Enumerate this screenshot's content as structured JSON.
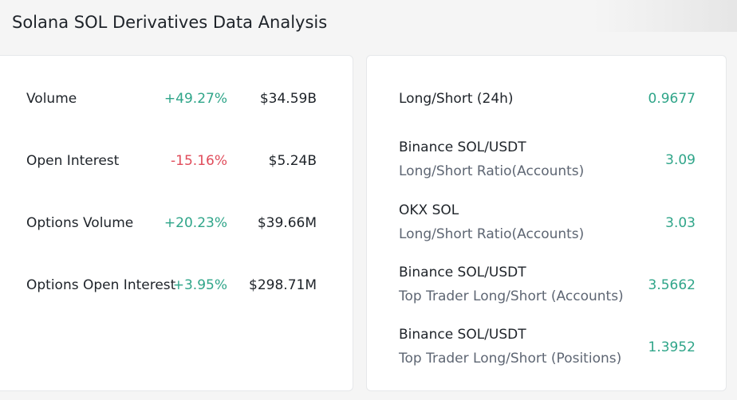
{
  "title": "Solana SOL Derivatives Data Analysis",
  "left_metrics": [
    {
      "label": "Volume",
      "change": "+49.27%",
      "direction": "up",
      "value": "$34.59B"
    },
    {
      "label": "Open Interest",
      "change": "-15.16%",
      "direction": "down",
      "value": "$5.24B"
    },
    {
      "label": "Options Volume",
      "change": "+20.23%",
      "direction": "up",
      "value": "$39.66M"
    },
    {
      "label": "Options Open Interest",
      "change": "+3.95%",
      "direction": "up",
      "value": "$298.71M"
    }
  ],
  "right_metrics": [
    {
      "line1": "Long/Short (24h)",
      "line2": "",
      "value": "0.9677"
    },
    {
      "line1": "Binance SOL/USDT",
      "line2": "Long/Short Ratio(Accounts)",
      "value": "3.09"
    },
    {
      "line1": "OKX SOL",
      "line2": "Long/Short Ratio(Accounts)",
      "value": "3.03"
    },
    {
      "line1": "Binance SOL/USDT",
      "line2": "Top Trader Long/Short (Accounts)",
      "value": "3.5662"
    },
    {
      "line1": "Binance SOL/USDT",
      "line2": "Top Trader Long/Short (Positions)",
      "value": "1.3952"
    }
  ],
  "colors": {
    "positive": "#2fa589",
    "negative": "#e04c5b"
  }
}
